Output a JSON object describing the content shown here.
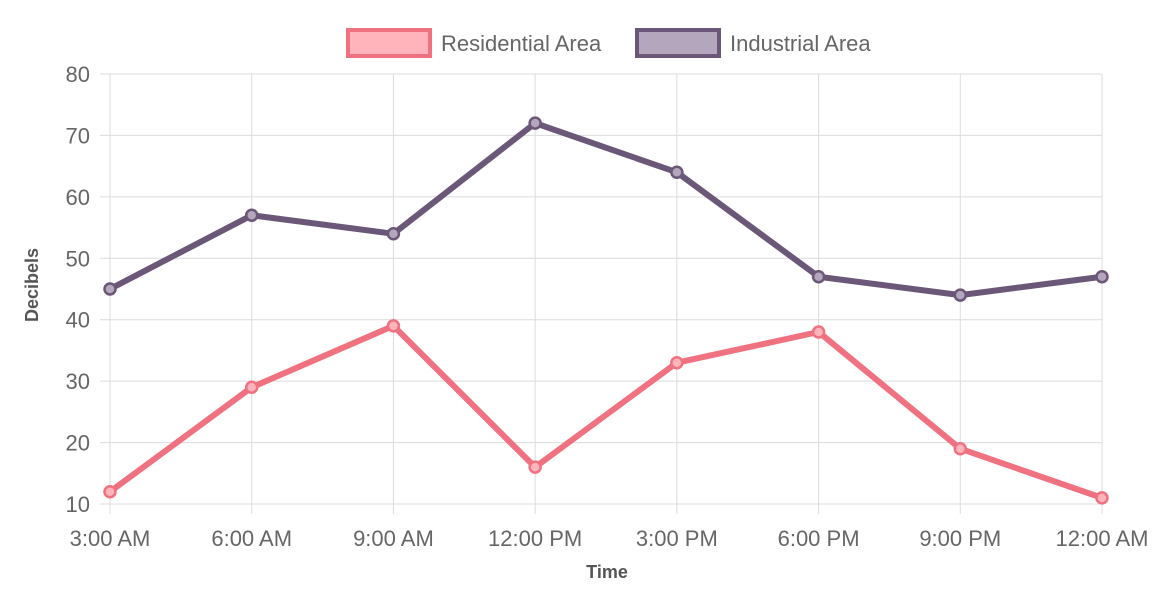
{
  "chart_data": {
    "type": "line",
    "categories": [
      "3:00 AM",
      "6:00 AM",
      "9:00 AM",
      "12:00 PM",
      "3:00 PM",
      "6:00 PM",
      "9:00 PM",
      "12:00 AM"
    ],
    "series": [
      {
        "name": "Residential Area",
        "values": [
          12,
          29,
          39,
          16,
          33,
          38,
          19,
          11
        ],
        "line_color": "#f07180",
        "fill_color": "#ffb3ba"
      },
      {
        "name": "Industrial Area",
        "values": [
          45,
          57,
          54,
          72,
          64,
          47,
          44,
          47
        ],
        "line_color": "#6b5778",
        "fill_color": "#b3a6bd"
      }
    ],
    "xlabel": "Time",
    "ylabel": "Decibels",
    "ylim": [
      10,
      80
    ],
    "yticks": [
      10,
      20,
      30,
      40,
      50,
      60,
      70,
      80
    ],
    "grid": true,
    "legend_position": "top-center"
  }
}
